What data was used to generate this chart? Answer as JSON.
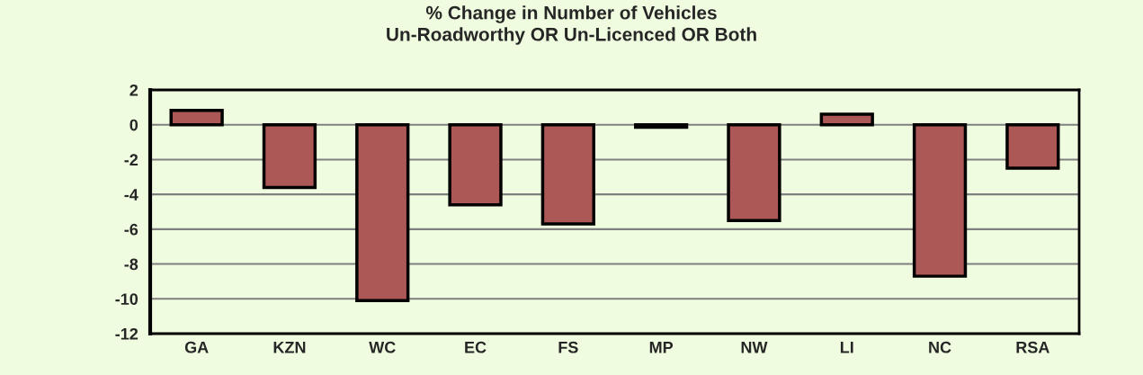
{
  "chart_data": {
    "type": "bar",
    "title": "% Change in Number of Vehicles\nUn-Roadworthy OR Un-Licenced OR Both",
    "categories": [
      "GA",
      "KZN",
      "WC",
      "EC",
      "FS",
      "MP",
      "NW",
      "LI",
      "NC",
      "RSA"
    ],
    "values": [
      0.83,
      -3.6,
      -10.1,
      -4.6,
      -5.7,
      -0.15,
      -5.5,
      0.6,
      -8.7,
      -2.5
    ],
    "color": "#ab5856",
    "ylim": [
      -12,
      2
    ],
    "yticks": [
      2,
      0,
      -2,
      -4,
      -6,
      -8,
      -10,
      -12
    ],
    "grid": "y",
    "legend": false
  }
}
